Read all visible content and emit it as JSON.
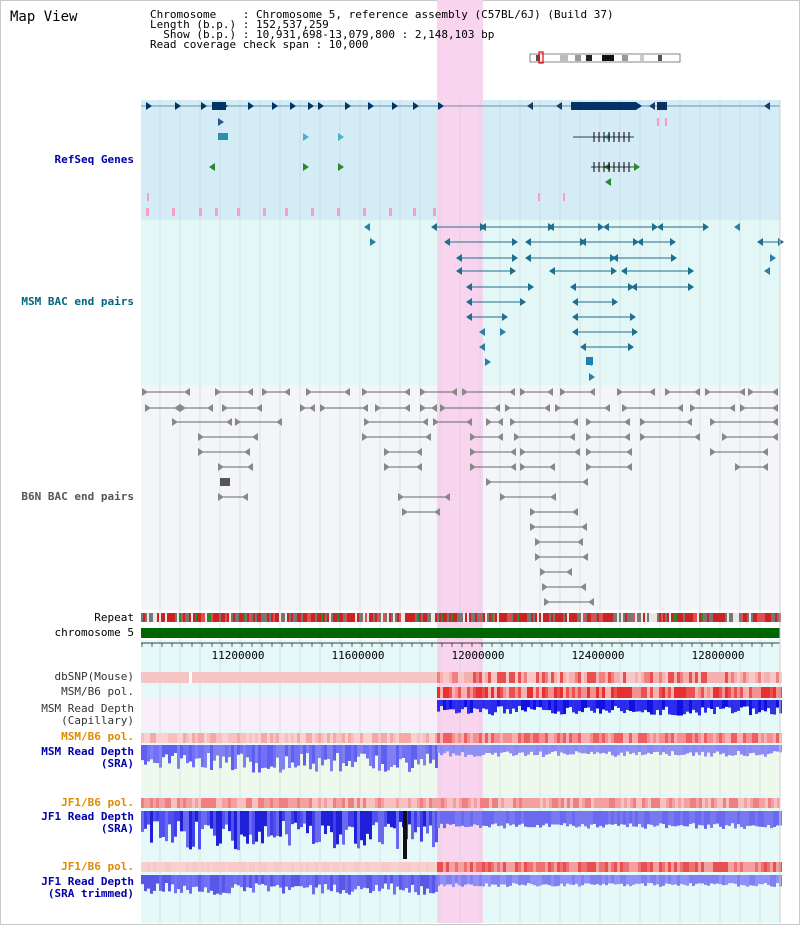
{
  "title": "Map View",
  "info": {
    "line1": "Chromosome    : Chromosome 5, reference assembly (C57BL/6J) (Build 37)",
    "line2": "Length (b.p.) : 152,537,259",
    "line3": "  Show (b.p.) : 10,931,698-13,079,800 : 2,148,103 bp",
    "line4": "Read coverage check span : 10,000"
  },
  "tracks": {
    "refseq": "RefSeq Genes",
    "msm_bac": "MSM BAC end pairs",
    "b6n_bac": "B6N BAC end pairs",
    "repeat": "Repeat",
    "chromosome": "chromosome 5",
    "dbsnp": "dbSNP(Mouse)",
    "msm_pol": "MSM/B6 pol.",
    "msm_depth_cap_1": "MSM Read Depth",
    "msm_depth_cap_2": "(Capillary)",
    "msm_pol_2": "MSM/B6 pol.",
    "msm_depth_sra_1": "MSM Read Depth",
    "msm_depth_sra_2": "(SRA)",
    "jf1_pol": "JF1/B6 pol.",
    "jf1_depth_1": "JF1 Read Depth",
    "jf1_depth_2": "(SRA)",
    "jf1_pol_2": "JF1/B6 pol.",
    "jf1_trim_1": "JF1 Read Depth",
    "jf1_trim_2": "(SRA trimmed)"
  },
  "axis": {
    "ticks": [
      "11200000",
      "11600000",
      "12000000",
      "12400000",
      "12800000"
    ]
  },
  "colors": {
    "highlight": "#f9d4ee",
    "refseq_bg": "#d4ecf6",
    "gene": "#003366",
    "msm_label": "#006680",
    "b6n_label": "#555555",
    "blue_label": "#0000aa",
    "orange_label": "#e08a00",
    "chromosome": "#006600"
  }
}
